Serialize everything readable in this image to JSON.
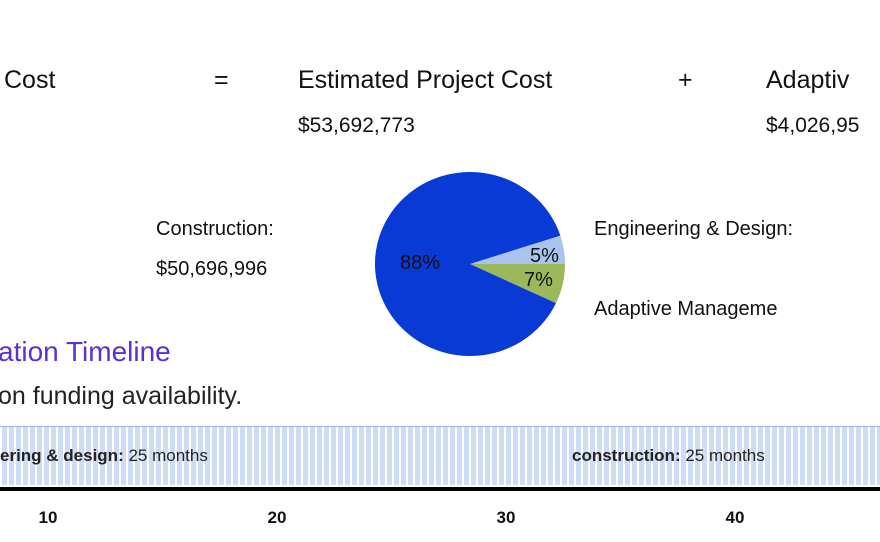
{
  "equation": {
    "left_label": "Cost",
    "equals": "=",
    "middle_label": "Estimated Project Cost",
    "middle_value": "$53,692,773",
    "plus": "+",
    "right_label": "Adaptiv",
    "right_value": "$4,026,95"
  },
  "breakdown": {
    "construction_label": "Construction:",
    "construction_value": "$50,696,996",
    "engineering_label": "Engineering & Design:",
    "adaptive_label": "Adaptive Manageme"
  },
  "chart_data": {
    "type": "pie",
    "slices": [
      {
        "label": "Construction",
        "value": 88,
        "text": "88%",
        "color": "#0a3ad6"
      },
      {
        "label": "Engineering & Design",
        "value": 5,
        "text": "5%",
        "color": "#a9c3ee"
      },
      {
        "label": "Adaptive Management",
        "value": 7,
        "text": "7%",
        "color": "#9bb85a"
      }
    ]
  },
  "timeline": {
    "title": "ation Timeline",
    "subtitle": "on funding availability.",
    "phases": [
      {
        "name": "ering & design:",
        "duration": "25 months"
      },
      {
        "name": "construction:",
        "duration": "25 months"
      }
    ],
    "ticks": [
      "10",
      "20",
      "30",
      "40"
    ]
  }
}
